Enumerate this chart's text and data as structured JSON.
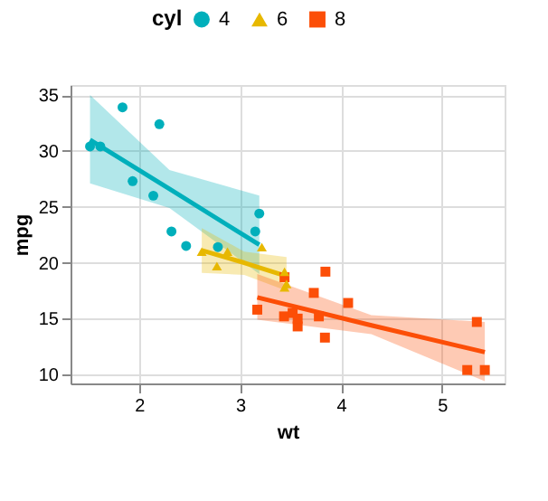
{
  "chart_data": {
    "type": "scatter",
    "xlabel": "wt",
    "ylabel": "mpg",
    "legend_title": "cyl",
    "legend": "top",
    "xlim": [
      1.32,
      5.62
    ],
    "ylim": [
      9.2,
      35.9
    ],
    "xticks": [
      2,
      3,
      4,
      5
    ],
    "yticks": [
      10,
      15,
      20,
      25,
      30,
      35
    ],
    "grid": true,
    "series": [
      {
        "name": "4",
        "marker": "circle",
        "color": "#00afbb",
        "x": [
          2.32,
          3.19,
          3.15,
          2.2,
          1.615,
          1.835,
          2.465,
          1.935,
          2.14,
          1.513,
          2.78
        ],
        "values": [
          22.8,
          24.4,
          22.8,
          32.4,
          30.4,
          33.9,
          21.5,
          27.3,
          26.0,
          30.4,
          21.4
        ]
      },
      {
        "name": "6",
        "marker": "triangle",
        "color": "#e7b800",
        "x": [
          2.62,
          2.875,
          3.215,
          3.46,
          3.44,
          3.44,
          2.77
        ],
        "values": [
          21.0,
          21.0,
          21.4,
          18.1,
          19.2,
          17.8,
          19.7
        ]
      },
      {
        "name": "8",
        "marker": "square",
        "color": "#fc4e07",
        "x": [
          3.44,
          3.57,
          4.07,
          3.73,
          3.78,
          5.25,
          5.424,
          5.345,
          3.52,
          3.435,
          3.84,
          3.845,
          3.17,
          3.57
        ],
        "values": [
          18.7,
          14.3,
          16.4,
          17.3,
          15.2,
          10.4,
          10.4,
          14.7,
          15.5,
          15.2,
          13.3,
          19.2,
          15.8,
          15.0
        ]
      },
      {
        "type": "line",
        "color": "#00afbb",
        "x": [
          1.513,
          2.3,
          3.19
        ],
        "values": [
          31.0,
          26.6,
          21.6
        ],
        "lower": [
          27.1,
          24.9,
          19.0
        ],
        "upper": [
          35.0,
          28.3,
          26.0
        ]
      },
      {
        "type": "line",
        "color": "#e7b800",
        "x": [
          2.62,
          3.04,
          3.46
        ],
        "values": [
          21.1,
          20.0,
          18.8
        ],
        "lower": [
          19.1,
          18.9,
          17.5
        ],
        "upper": [
          23.1,
          21.0,
          20.5
        ]
      },
      {
        "type": "line",
        "color": "#fc4e07",
        "x": [
          3.17,
          4.3,
          5.424
        ],
        "values": [
          16.9,
          14.4,
          12.0
        ],
        "lower": [
          14.9,
          13.6,
          9.4
        ],
        "upper": [
          19.0,
          15.3,
          14.7
        ]
      }
    ]
  }
}
